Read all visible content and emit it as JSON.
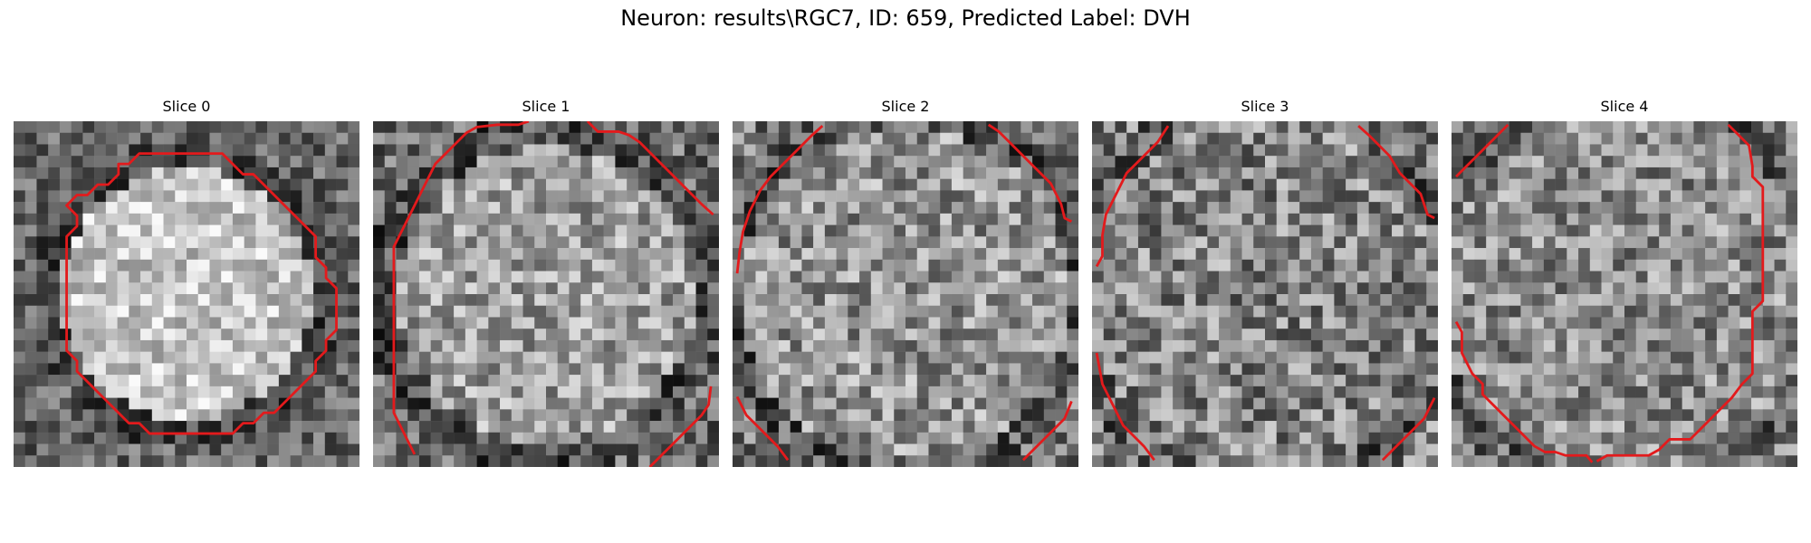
{
  "figure": {
    "title": "Neuron: results\\RGC7, ID: 659, Predicted Label: DVH",
    "contour_color": "#e31a1c"
  },
  "slices": [
    {
      "title": "Slice 0"
    },
    {
      "title": "Slice 1"
    },
    {
      "title": "Slice 2"
    },
    {
      "title": "Slice 3"
    },
    {
      "title": "Slice 4"
    }
  ]
}
